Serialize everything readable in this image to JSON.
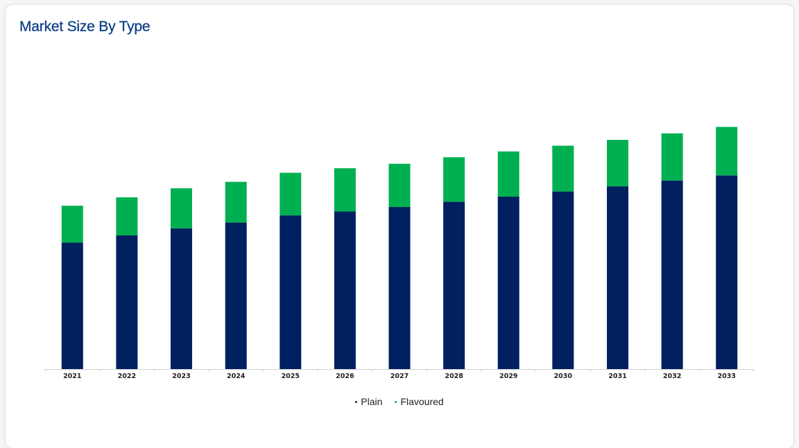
{
  "title": "Market Size By Type",
  "chart_data": {
    "type": "bar",
    "stacked": true,
    "title": "Market Size By Type",
    "xlabel": "",
    "ylabel": "",
    "categories": [
      "2021",
      "2022",
      "2023",
      "2024",
      "2025",
      "2026",
      "2027",
      "2028",
      "2029",
      "2030",
      "2031",
      "2032",
      "2033"
    ],
    "series": [
      {
        "name": "Plain",
        "color": "#00205f",
        "values": [
          196,
          207,
          218,
          227,
          238,
          244,
          251,
          259,
          267,
          275,
          283,
          292,
          300
        ]
      },
      {
        "name": "Flavoured",
        "color": "#00b050",
        "values": [
          57,
          59,
          62,
          63,
          66,
          67,
          67,
          69,
          70,
          71,
          72,
          73,
          75
        ]
      }
    ],
    "ylim": [
      0,
      400
    ],
    "grid": false,
    "y_axis_visible": false,
    "legend_position": "bottom-center"
  }
}
